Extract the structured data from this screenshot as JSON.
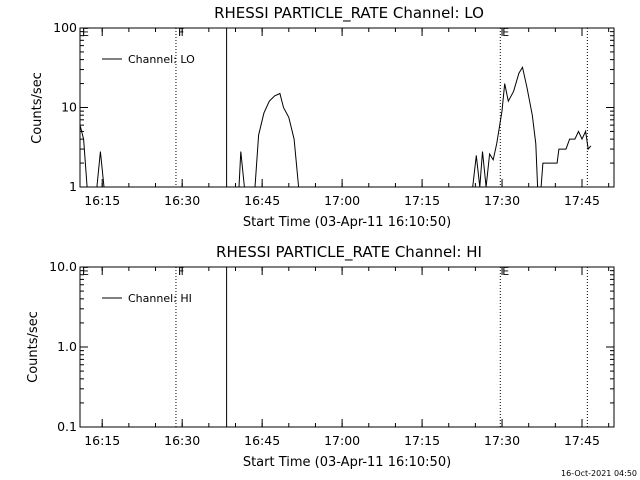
{
  "footer": {
    "timestamp": "16-Oct-2021 04:50"
  },
  "chart_data": [
    {
      "type": "line",
      "title": "RHESSI PARTICLE_RATE Channel: LO",
      "xlabel": "Start Time (03-Apr-11 16:10:50)",
      "ylabel": "Counts/sec",
      "y_scale": "log",
      "xlim": [
        "16:10:50",
        "17:51:00"
      ],
      "ylim": [
        1,
        100
      ],
      "x_ticks": [
        "16:15",
        "16:30",
        "16:45",
        "17:00",
        "17:15",
        "17:30",
        "17:45"
      ],
      "y_ticks": [
        "1",
        "10",
        "100"
      ],
      "legend": {
        "position": "top-left",
        "entries": [
          "Channel: LO"
        ]
      },
      "markers": [
        {
          "label": "E",
          "time": "16:10:50",
          "style": "dotted"
        },
        {
          "label": "F",
          "time": "16:28:50",
          "style": "dotted"
        },
        {
          "label": "",
          "time": "16:38:20",
          "style": "solid"
        },
        {
          "label": "E",
          "time": "17:29:40",
          "style": "dotted"
        },
        {
          "label": "",
          "time": "17:46:00",
          "style": "dotted"
        }
      ],
      "series": [
        {
          "name": "Channel: LO",
          "segments": [
            [
              [
                "16:10:50",
                6
              ],
              [
                "16:11:30",
                4
              ],
              [
                "16:12:10",
                1
              ]
            ],
            [
              [
                "16:14:00",
                1
              ],
              [
                "16:14:40",
                2.8
              ],
              [
                "16:15:20",
                1
              ]
            ],
            [
              [
                "16:40:40",
                1
              ],
              [
                "16:41:00",
                2.8
              ],
              [
                "16:41:40",
                1
              ]
            ],
            [
              [
                "16:43:40",
                1
              ],
              [
                "16:44:20",
                4.5
              ],
              [
                "16:45:20",
                8.5
              ],
              [
                "16:46:20",
                12
              ],
              [
                "16:47:20",
                14
              ],
              [
                "16:48:20",
                15
              ],
              [
                "16:49:00",
                10
              ],
              [
                "16:50:00",
                7.5
              ],
              [
                "16:51:00",
                4
              ],
              [
                "16:51:50",
                1
              ]
            ],
            [
              [
                "17:24:30",
                1
              ],
              [
                "17:25:10",
                2.5
              ],
              [
                "17:25:50",
                1
              ],
              [
                "17:26:20",
                2.8
              ],
              [
                "17:27:00",
                1
              ],
              [
                "17:27:40",
                2.6
              ],
              [
                "17:28:20",
                2.2
              ],
              [
                "17:29:00",
                3.5
              ],
              [
                "17:30:00",
                9
              ],
              [
                "17:30:30",
                20
              ],
              [
                "17:31:10",
                12
              ],
              [
                "17:32:10",
                16
              ],
              [
                "17:33:10",
                27
              ],
              [
                "17:33:50",
                32
              ],
              [
                "17:34:40",
                18
              ],
              [
                "17:35:40",
                8
              ],
              [
                "17:36:20",
                3.5
              ],
              [
                "17:36:40",
                1
              ]
            ],
            [
              [
                "17:37:20",
                1
              ],
              [
                "17:37:40",
                2
              ],
              [
                "17:40:20",
                2
              ],
              [
                "17:40:40",
                3
              ],
              [
                "17:42:00",
                3
              ],
              [
                "17:42:40",
                4
              ],
              [
                "17:43:40",
                4
              ],
              [
                "17:44:20",
                5
              ],
              [
                "17:45:00",
                4
              ],
              [
                "17:45:40",
                5
              ],
              [
                "17:46:10",
                3
              ],
              [
                "17:46:40",
                3.3
              ]
            ]
          ]
        }
      ]
    },
    {
      "type": "line",
      "title": "RHESSI PARTICLE_RATE Channel: HI",
      "xlabel": "Start Time (03-Apr-11 16:10:50)",
      "ylabel": "Counts/sec",
      "y_scale": "log",
      "xlim": [
        "16:10:50",
        "17:51:00"
      ],
      "ylim": [
        0.1,
        10
      ],
      "x_ticks": [
        "16:15",
        "16:30",
        "16:45",
        "17:00",
        "17:15",
        "17:30",
        "17:45"
      ],
      "y_ticks": [
        "0.1",
        "1.0",
        "10.0"
      ],
      "legend": {
        "position": "top-left",
        "entries": [
          "Channel: HI"
        ]
      },
      "markers": [
        {
          "label": "E",
          "time": "16:10:50",
          "style": "dotted"
        },
        {
          "label": "F",
          "time": "16:28:50",
          "style": "dotted"
        },
        {
          "label": "",
          "time": "16:38:20",
          "style": "solid"
        },
        {
          "label": "E",
          "time": "17:29:40",
          "style": "dotted"
        },
        {
          "label": "",
          "time": "17:46:00",
          "style": "dotted"
        }
      ],
      "series": [
        {
          "name": "Channel: HI",
          "segments": []
        }
      ]
    }
  ]
}
